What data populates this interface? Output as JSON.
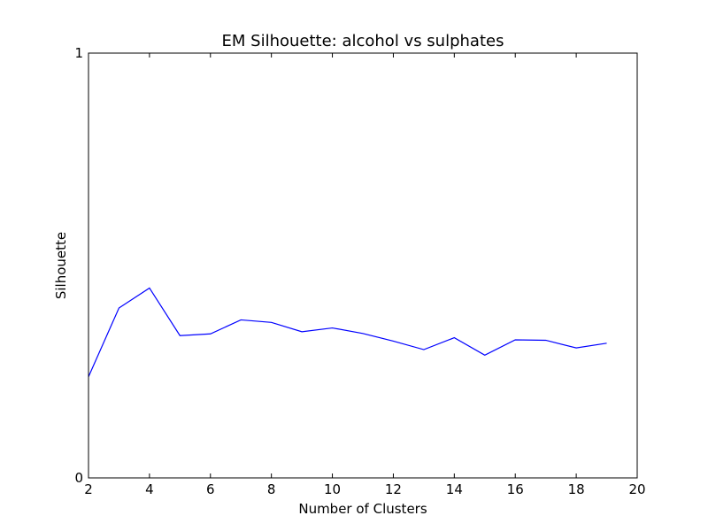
{
  "chart_data": {
    "type": "line",
    "title": "EM Silhouette: alcohol vs sulphates",
    "xlabel": "Number of Clusters",
    "ylabel": "Silhouette",
    "xlim": [
      2,
      20
    ],
    "ylim": [
      0,
      1
    ],
    "xticks": [
      "2",
      "4",
      "6",
      "8",
      "10",
      "12",
      "14",
      "16",
      "18",
      "20"
    ],
    "yticks": [
      "0",
      "1"
    ],
    "grid": false,
    "series": [
      {
        "color": "#0000ff",
        "x": [
          2,
          3,
          4,
          5,
          6,
          7,
          8,
          9,
          10,
          11,
          12,
          13,
          14,
          15,
          16,
          17,
          18,
          19
        ],
        "y": [
          0.238,
          0.4,
          0.447,
          0.335,
          0.339,
          0.372,
          0.366,
          0.344,
          0.353,
          0.34,
          0.322,
          0.302,
          0.33,
          0.289,
          0.325,
          0.324,
          0.306,
          0.317
        ]
      }
    ]
  }
}
